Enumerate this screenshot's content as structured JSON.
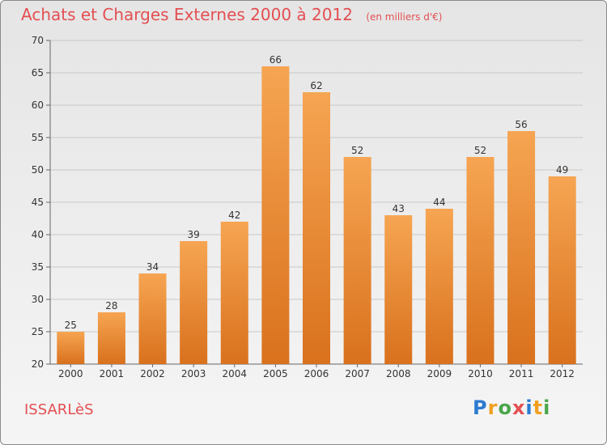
{
  "header": {
    "title": "Achats et Charges Externes 2000 à 2012",
    "unit": "(en milliers d'€)"
  },
  "footer": {
    "commune": "ISSARLèS",
    "brand": "Proxiti",
    "brand_letters": [
      {
        "ch": "P",
        "color": "#2b7bd1"
      },
      {
        "ch": "r",
        "color": "#f0a020"
      },
      {
        "ch": "o",
        "color": "#4aa64a"
      },
      {
        "ch": "x",
        "color": "#e34f52"
      },
      {
        "ch": "i",
        "color": "#2b7bd1"
      },
      {
        "ch": "t",
        "color": "#f0a020"
      },
      {
        "ch": "i",
        "color": "#4aa64a"
      }
    ]
  },
  "colors": {
    "bar_top": "#f6a552",
    "bar_bottom": "#d9711d",
    "grid": "#c8c8c8",
    "text": "#333333",
    "accent": "#e34f52"
  },
  "chart_data": {
    "type": "bar",
    "title": "Achats et Charges Externes 2000 à 2012",
    "xlabel": "",
    "ylabel": "",
    "categories": [
      "2000",
      "2001",
      "2002",
      "2003",
      "2004",
      "2005",
      "2006",
      "2007",
      "2008",
      "2009",
      "2010",
      "2011",
      "2012"
    ],
    "values": [
      25,
      28,
      34,
      39,
      42,
      66,
      62,
      52,
      43,
      44,
      52,
      56,
      49
    ],
    "ylim": [
      20,
      70
    ],
    "yticks": [
      20,
      25,
      30,
      35,
      40,
      45,
      50,
      55,
      60,
      65,
      70
    ],
    "grid": true
  }
}
